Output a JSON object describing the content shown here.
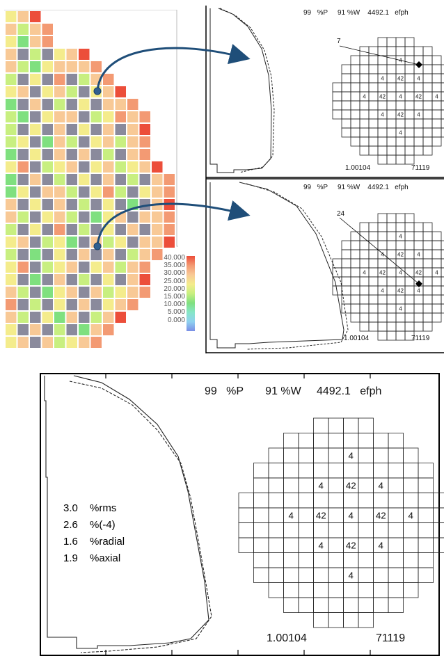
{
  "core_map": {
    "palette": [
      "#8a8a9c",
      "#7fe07f",
      "#c8ef80",
      "#f4ec8c",
      "#f8c996",
      "#f39a73",
      "#ec4e3a"
    ],
    "legend": {
      "labels": [
        "40.000",
        "35.000",
        "30.000",
        "25.000",
        "20.000",
        "15.000",
        "10.000",
        "5.000",
        "0.000"
      ],
      "colors": [
        "#ec4e3a",
        "#f39a73",
        "#f8c996",
        "#f4ec8c",
        "#c8ef80",
        "#7fe07f",
        "#86e6c8",
        "#8fd1f0",
        "#7a8ee6"
      ]
    }
  },
  "top_panels": [
    {
      "header": {
        "power": "99",
        "power_unit": "%P",
        "flow": "91 %W",
        "burnup": "4492.1",
        "burnup_unit": "efph"
      },
      "footer": {
        "keff": "1.00104",
        "id": "71119"
      },
      "marker_label": "7"
    },
    {
      "header": {
        "power": "99",
        "power_unit": "%P",
        "flow": "91 %W",
        "burnup": "4492.1",
        "burnup_unit": "efph"
      },
      "footer": {
        "keff": "1.00104",
        "id": "71119"
      },
      "marker_label": "24"
    }
  ],
  "main_panel": {
    "header": {
      "power": "99",
      "power_unit": "%P",
      "flow": "91 %W",
      "burnup": "4492.1",
      "burnup_unit": "efph"
    },
    "footer": {
      "keff": "1.00104",
      "id": "71119"
    },
    "stats": [
      {
        "value": "3.0",
        "label": "%rms"
      },
      {
        "value": "2.6",
        "label": "%(-4)"
      },
      {
        "value": "1.6",
        "label": "%radial"
      },
      {
        "value": "1.9",
        "label": "%axial"
      }
    ]
  },
  "rod_grid": {
    "row_widths": [
      4,
      8,
      10,
      12,
      12,
      14,
      14,
      14,
      14,
      12,
      12,
      10,
      8,
      4
    ],
    "values": [
      {
        "row": 2,
        "col": 7,
        "text": "4"
      },
      {
        "row": 4,
        "col": 5,
        "text": "4"
      },
      {
        "row": 4,
        "col": 7,
        "text": "42"
      },
      {
        "row": 4,
        "col": 9,
        "text": "4"
      },
      {
        "row": 6,
        "col": 3,
        "text": "4"
      },
      {
        "row": 6,
        "col": 5,
        "text": "42"
      },
      {
        "row": 6,
        "col": 7,
        "text": "4"
      },
      {
        "row": 6,
        "col": 9,
        "text": "42"
      },
      {
        "row": 6,
        "col": 11,
        "text": "4"
      },
      {
        "row": 8,
        "col": 5,
        "text": "4"
      },
      {
        "row": 8,
        "col": 7,
        "text": "42"
      },
      {
        "row": 8,
        "col": 9,
        "text": "4"
      },
      {
        "row": 10,
        "col": 7,
        "text": "4"
      }
    ]
  }
}
